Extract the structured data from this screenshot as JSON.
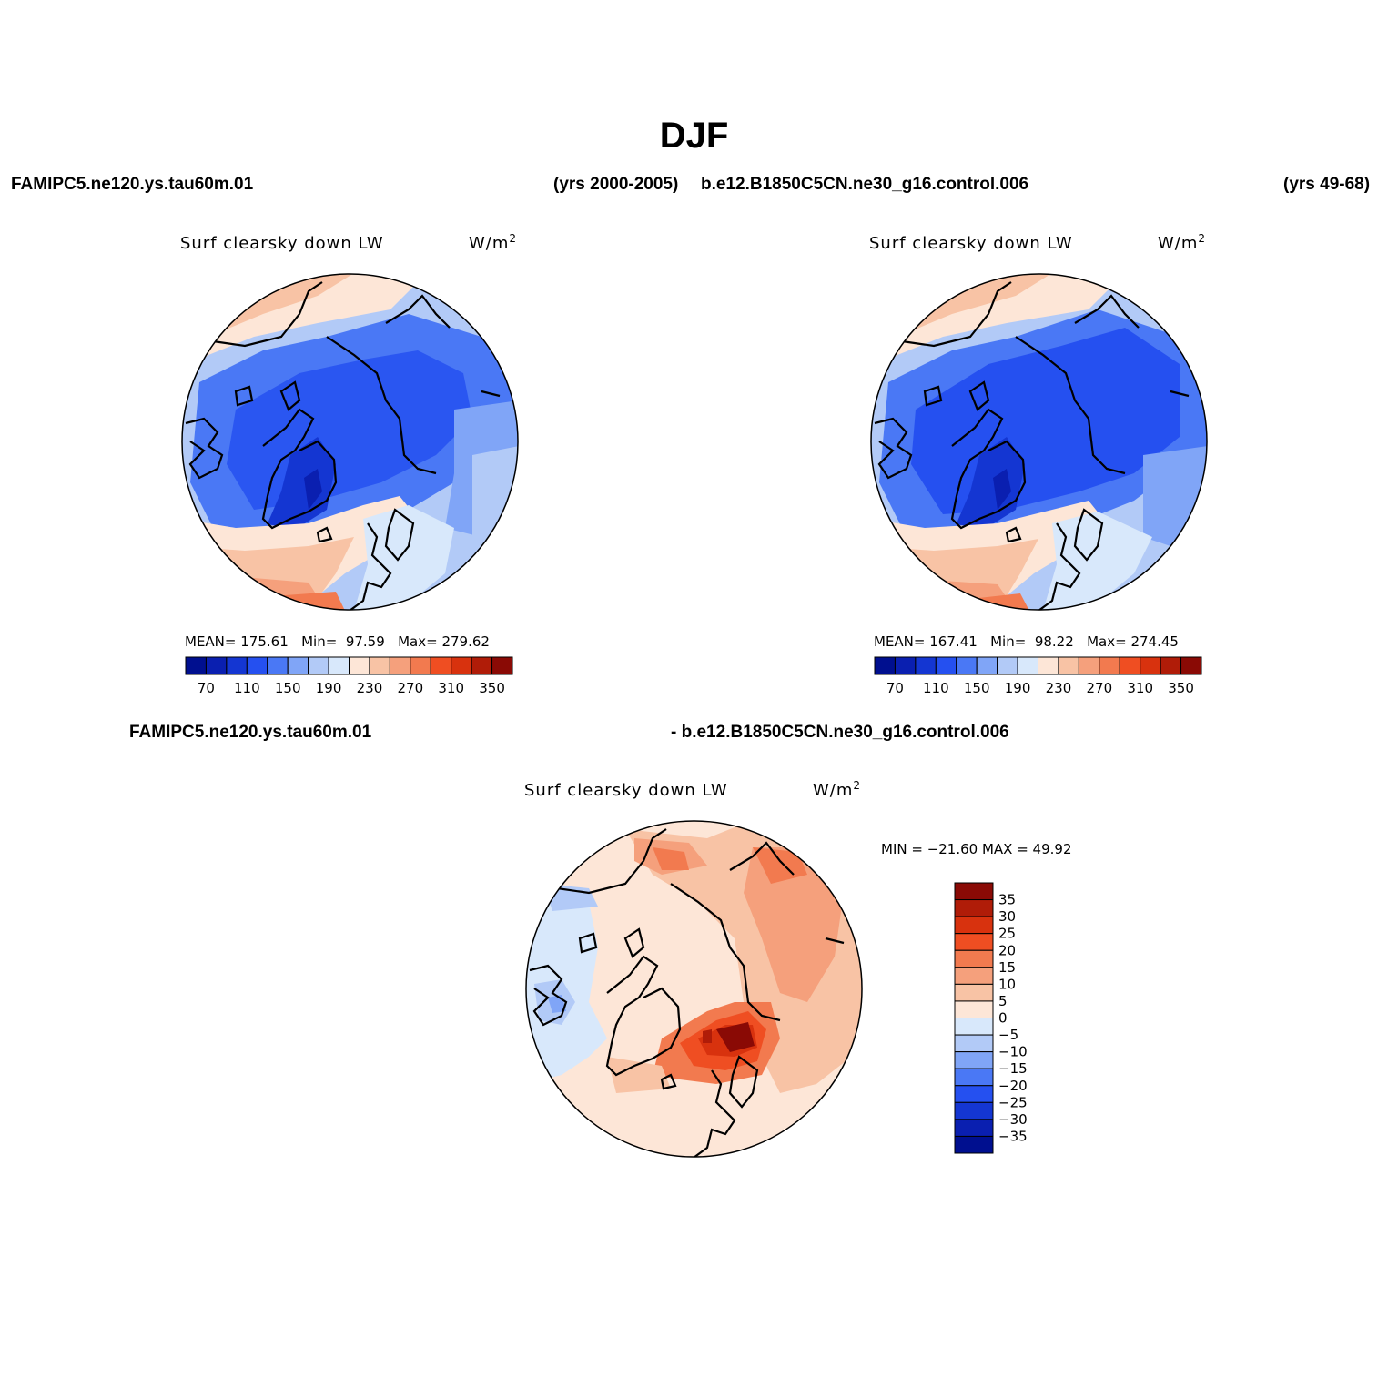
{
  "title": "DJF",
  "header": {
    "case1": "FAMIPC5.ne120.ys.tau60m.01",
    "case1_years": "(yrs 2000-2005)",
    "case2": "b.e12.B1850C5CN.ne30_g16.control.006",
    "case2_years": "(yrs 49-68)"
  },
  "panels": [
    {
      "label": "Surf clearsky down LW",
      "unit": "W/m",
      "unit_exp": "2",
      "mean_label": "MEAN=",
      "mean": "175.61",
      "min_label": "Min=",
      "min": "97.59",
      "max_label": "Max=",
      "max": "279.62"
    },
    {
      "label": "Surf clearsky down LW",
      "unit": "W/m",
      "unit_exp": "2",
      "mean_label": "MEAN=",
      "mean": "167.41",
      "min_label": "Min=",
      "min": "98.22",
      "max_label": "Max=",
      "max": "274.45"
    }
  ],
  "difference": {
    "case_left": "FAMIPC5.ne120.ys.tau60m.01",
    "case_right": "- b.e12.B1850C5CN.ne30_g16.control.006",
    "label": "Surf clearsky down LW",
    "unit": "W/m",
    "unit_exp": "2",
    "minmax_text": "MIN = −21.60 MAX =  49.92"
  },
  "colorbar_top": {
    "colors": [
      "#000f8f",
      "#0a1fb0",
      "#1436d2",
      "#2550f0",
      "#4a78f5",
      "#80a5f7",
      "#b2caf7",
      "#d8e8fb",
      "#fde6d7",
      "#f8c3a5",
      "#f5a07c",
      "#f27a4f",
      "#ef4e22",
      "#d8320e",
      "#b01c08",
      "#8a0a05"
    ],
    "labels": [
      "70",
      "110",
      "150",
      "190",
      "230",
      "270",
      "310",
      "350"
    ]
  },
  "colorbar_diff": {
    "colors": [
      "#000f8f",
      "#0a1fb0",
      "#1436d2",
      "#2550f0",
      "#4a78f5",
      "#80a5f7",
      "#b2caf7",
      "#d8e8fb",
      "#fde6d7",
      "#f8c3a5",
      "#f5a07c",
      "#f27a4f",
      "#ef4e22",
      "#d8320e",
      "#b01c08",
      "#8a0a05"
    ],
    "labels": [
      "−35",
      "−30",
      "−25",
      "−20",
      "−15",
      "−10",
      "−5",
      "0",
      "5",
      "10",
      "15",
      "20",
      "25",
      "30",
      "35"
    ]
  }
}
